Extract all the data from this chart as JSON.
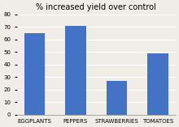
{
  "categories": [
    "EGGPLANTS",
    "PEPPERS",
    "STRAWBERRIES",
    "TOMATOES"
  ],
  "values": [
    65,
    71,
    27,
    49
  ],
  "bar_color": "#4472C4",
  "title": "% increased yield over control",
  "ylim": [
    0,
    80
  ],
  "yticks": [
    0,
    10,
    20,
    30,
    40,
    50,
    60,
    70,
    80
  ],
  "title_fontsize": 7,
  "tick_fontsize": 5,
  "background_color": "#f0ede8"
}
